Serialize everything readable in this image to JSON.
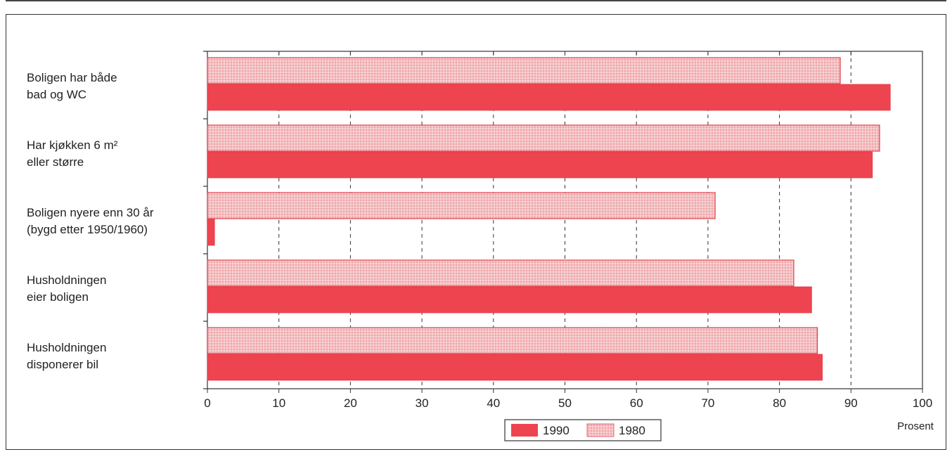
{
  "chart_data": {
    "type": "bar",
    "orientation": "horizontal",
    "categories": [
      [
        "Boligen har både",
        "bad og WC"
      ],
      [
        "Har kjøkken 6 m²",
        "eller større"
      ],
      [
        "Boligen nyere enn 30 år",
        "(bygd etter 1950/1960)"
      ],
      [
        "Husholdningen",
        "eier boligen"
      ],
      [
        "Husholdningen",
        "disponerer bil"
      ]
    ],
    "series": [
      {
        "name": "1980",
        "values": [
          88.5,
          94,
          71,
          82,
          85.3
        ],
        "color": "#f2b8b8"
      },
      {
        "name": "1990",
        "values": [
          95.5,
          93,
          1,
          84.5,
          86
        ],
        "color": "#ee4450"
      }
    ],
    "xlim": [
      0,
      100
    ],
    "xticks": [
      0,
      10,
      20,
      30,
      40,
      50,
      60,
      70,
      80,
      90,
      100
    ],
    "xlabel": "Prosent",
    "grid": "vertical dashed",
    "legend": {
      "position": "bottom-center",
      "order": [
        "1990",
        "1980"
      ]
    }
  }
}
